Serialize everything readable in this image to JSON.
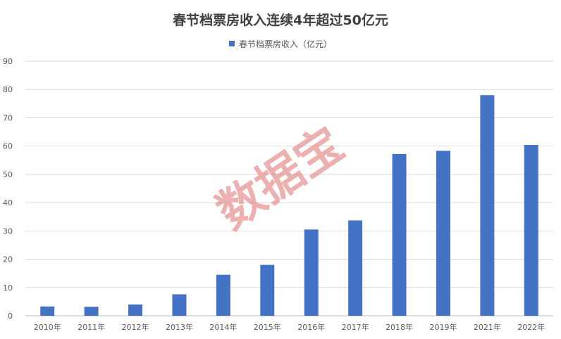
{
  "chart_data": {
    "type": "bar",
    "title": "春节档票房收入连续4年超过50亿元",
    "categories": [
      "2010年",
      "2011年",
      "2012年",
      "2013年",
      "2014年",
      "2015年",
      "2016年",
      "2017年",
      "2018年",
      "2019年",
      "2021年",
      "2022年"
    ],
    "series": [
      {
        "name": "春节档票房收入（亿元）",
        "values": [
          3.3,
          3.2,
          4.0,
          7.6,
          14.5,
          18.0,
          30.5,
          33.7,
          57.2,
          58.3,
          78.0,
          60.4
        ]
      }
    ],
    "ylim": [
      0,
      90
    ],
    "yticks": [
      "0",
      "10",
      "20",
      "30",
      "40",
      "50",
      "60",
      "70",
      "80",
      "90"
    ],
    "grid": true,
    "legend": "top-center",
    "colors": {
      "bar": "#4472c4",
      "grid": "#d9d9d9",
      "axis": "#bfbfbf"
    },
    "watermark": "数据宝"
  }
}
